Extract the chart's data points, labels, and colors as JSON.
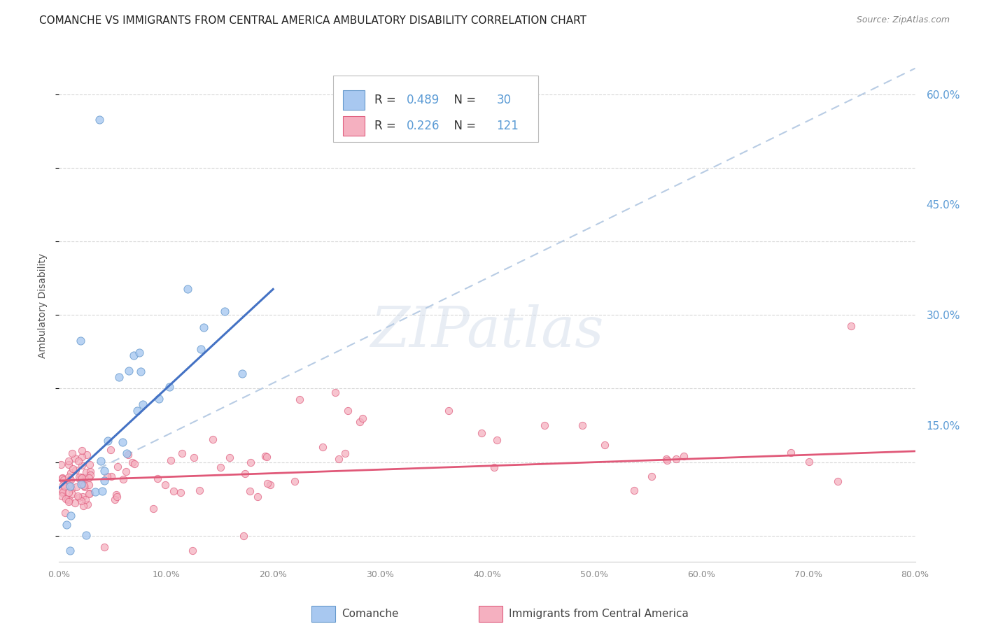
{
  "title": "COMANCHE VS IMMIGRANTS FROM CENTRAL AMERICA AMBULATORY DISABILITY CORRELATION CHART",
  "source": "Source: ZipAtlas.com",
  "ylabel": "Ambulatory Disability",
  "ytick_values": [
    0.0,
    0.15,
    0.3,
    0.45,
    0.6
  ],
  "ytick_labels": [
    "",
    "15.0%",
    "30.0%",
    "45.0%",
    "60.0%"
  ],
  "xlim": [
    0.0,
    0.8
  ],
  "ylim": [
    -0.035,
    0.66
  ],
  "xtick_values": [
    0.0,
    0.1,
    0.2,
    0.3,
    0.4,
    0.5,
    0.6,
    0.7,
    0.8
  ],
  "xtick_labels": [
    "0.0%",
    "10.0%",
    "20.0%",
    "30.0%",
    "40.0%",
    "50.0%",
    "60.0%",
    "70.0%",
    "80.0%"
  ],
  "scatter_color_comanche": "#a8c8f0",
  "scatter_edge_comanche": "#6699cc",
  "scatter_color_immigrants": "#f5b0c0",
  "scatter_edge_immigrants": "#e06080",
  "line_color_comanche": "#4472c4",
  "line_color_immigrants": "#e05878",
  "dashed_line_color": "#b8cce4",
  "background_color": "#ffffff",
  "grid_color": "#d8d8d8",
  "watermark": "ZIPatlas",
  "title_fontsize": 11,
  "right_ytick_color": "#5b9bd5",
  "legend_R1": "0.489",
  "legend_N1": "30",
  "legend_R2": "0.226",
  "legend_N2": "121",
  "legend_text_color": "#333333",
  "legend_num_color": "#5b9bd5",
  "comanche_line_x0": 0.0,
  "comanche_line_y0": 0.065,
  "comanche_line_x1": 0.2,
  "comanche_line_y1": 0.335,
  "dashed_line_x0": 0.0,
  "dashed_line_y0": 0.065,
  "dashed_line_x1": 0.8,
  "dashed_line_y1": 0.635,
  "immigrants_line_x0": 0.0,
  "immigrants_line_y0": 0.075,
  "immigrants_line_x1": 0.8,
  "immigrants_line_y1": 0.115
}
